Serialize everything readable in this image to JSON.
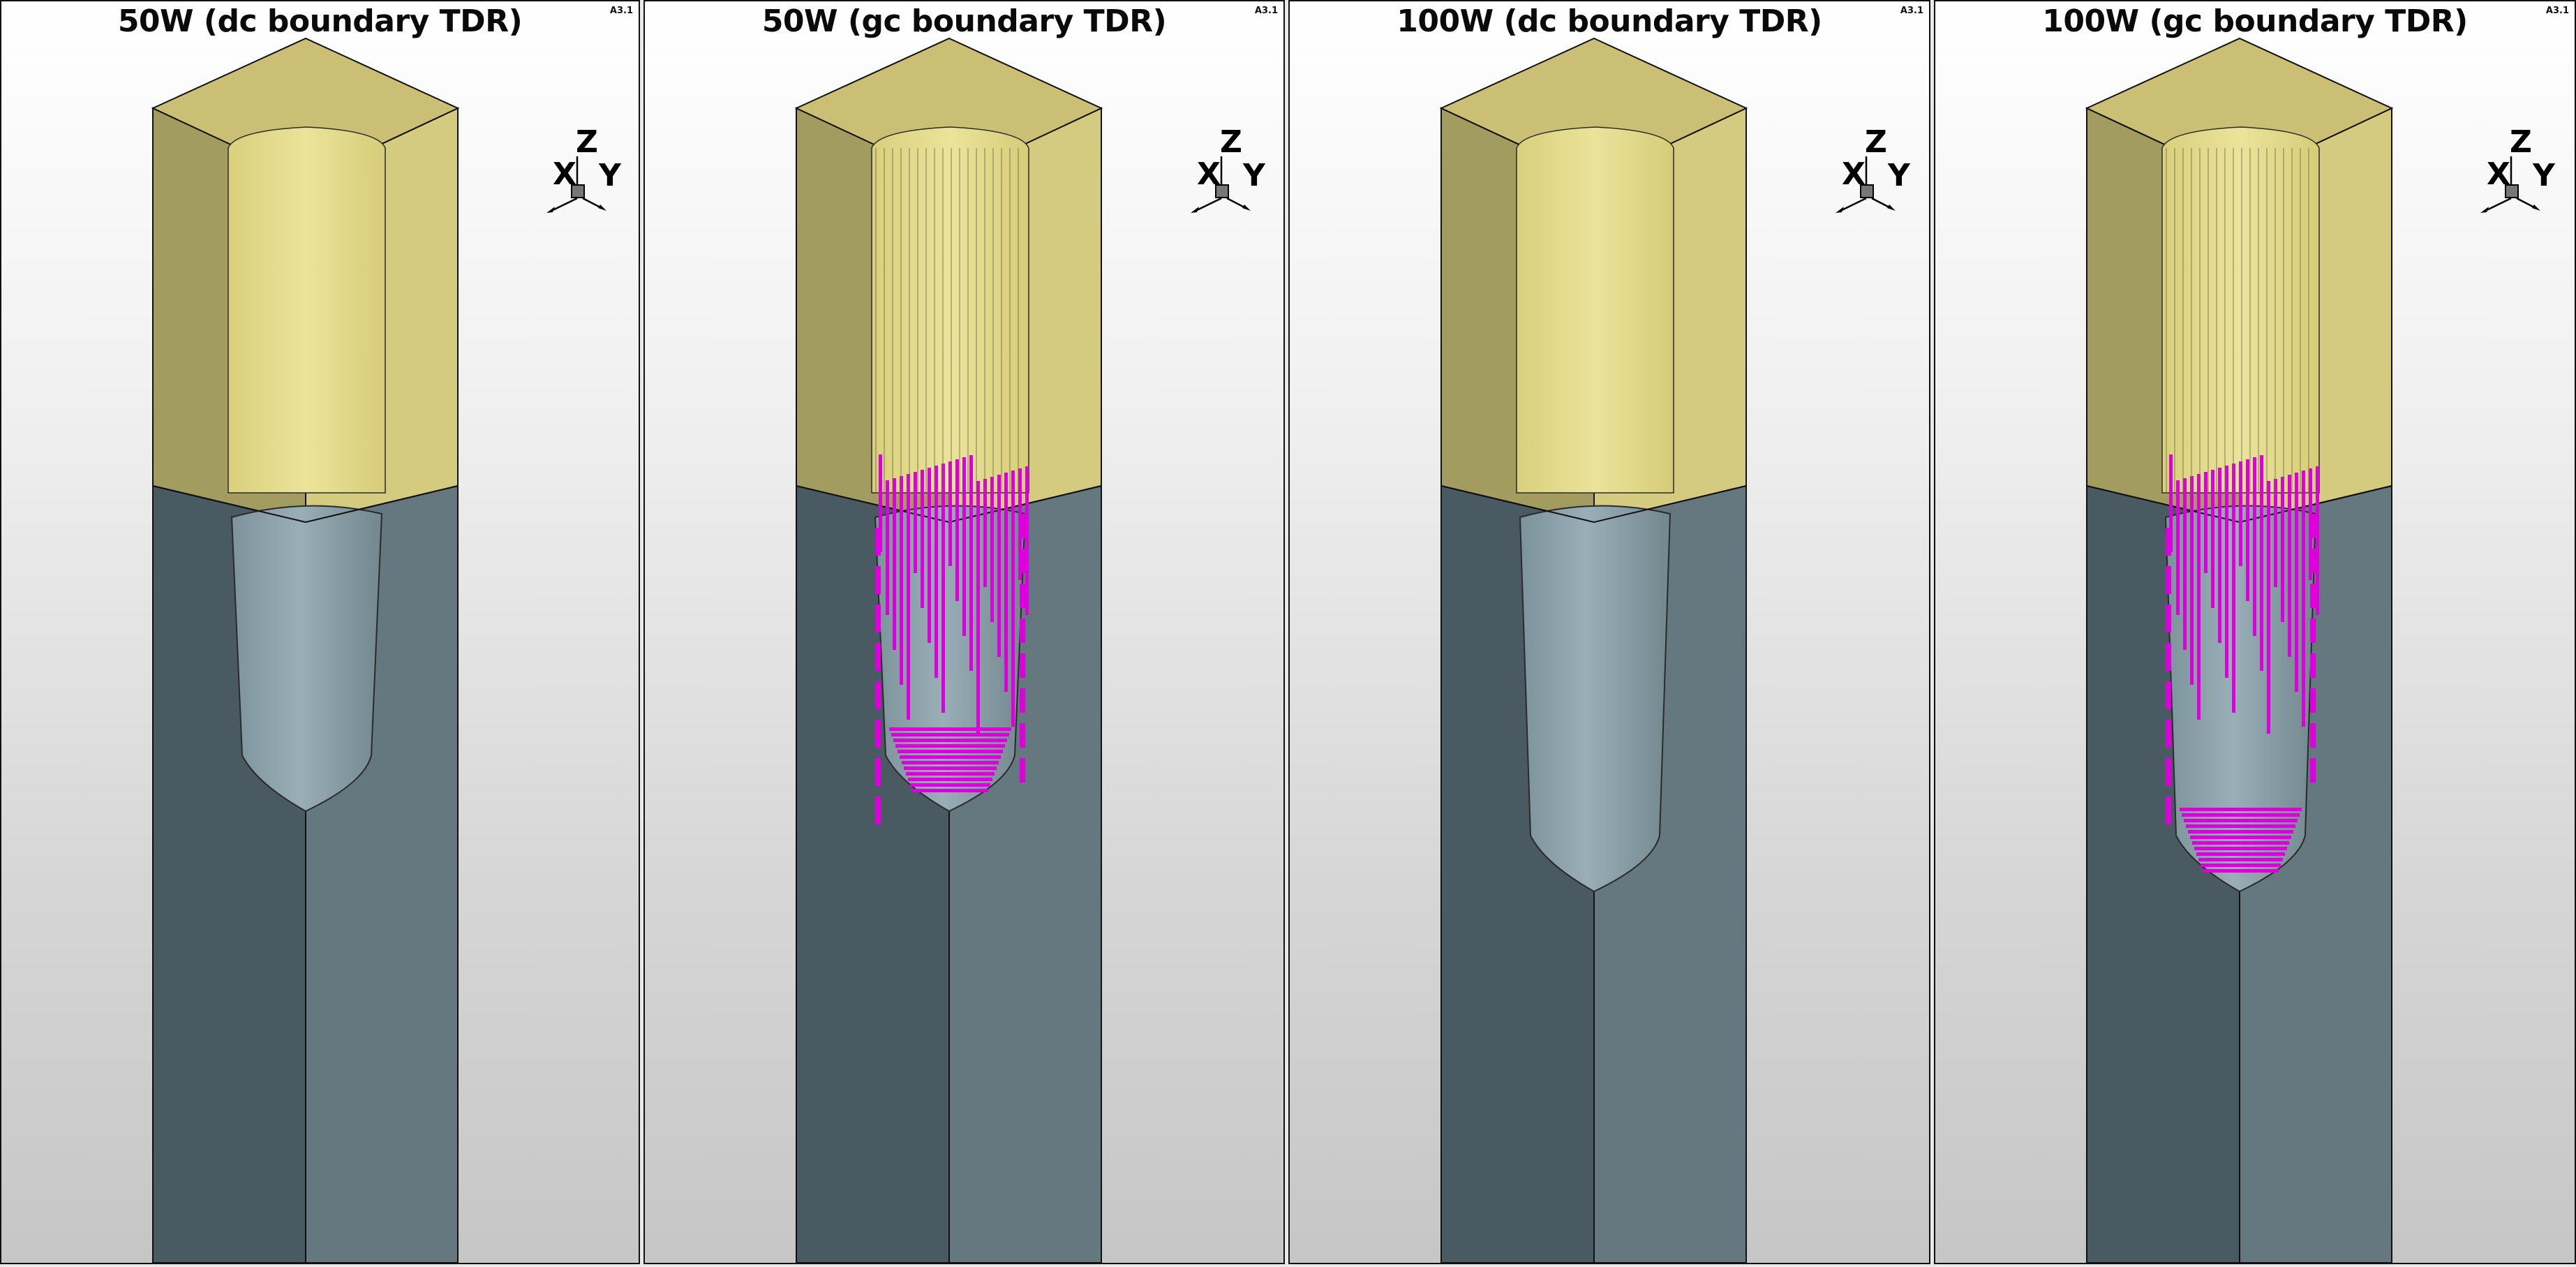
{
  "app": {
    "viewports": [
      {
        "title": "50W (dc boundary TDR)",
        "version": "A3.1",
        "material_highlight": false,
        "cavity": "short"
      },
      {
        "title": "50W (gc boundary TDR)",
        "version": "A3.1",
        "material_highlight": true,
        "cavity": "short"
      },
      {
        "title": "100W (dc boundary TDR)",
        "version": "A3.1",
        "material_highlight": false,
        "cavity": "long"
      },
      {
        "title": "100W (gc boundary TDR)",
        "version": "A3.1",
        "material_highlight": true,
        "cavity": "long"
      }
    ],
    "axis_triad": {
      "labels": {
        "z": "Z",
        "x": "X",
        "y": "Y"
      },
      "icon": "axis-triad-icon"
    },
    "colors": {
      "top_left_face": "#a39c60",
      "top_right_face": "#d4cb80",
      "top_cap": "#cbbf76",
      "bottom_left_face": "#4a5a63",
      "bottom_right_face": "#66787f",
      "cavity_wall": "#8a9ea6",
      "cavity_top_wall": "#e2da8a",
      "highlight": "#dd00dd",
      "viewport_border": "#111111"
    }
  }
}
